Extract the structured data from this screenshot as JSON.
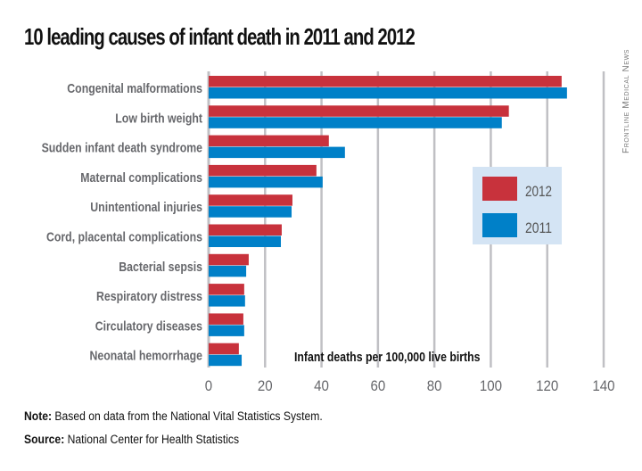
{
  "header": {
    "title": "10 leading causes of infant death in 2011 and 2012",
    "brand": "Frontline Medical News"
  },
  "colors": {
    "series_2012": "#c8323c",
    "series_2011": "#0080c8",
    "gridline": "#c0c0c4",
    "legend_bg": "#d4e4f4"
  },
  "chart_data": {
    "type": "bar",
    "orientation": "horizontal",
    "title": "10 leading causes of infant death in 2011 and 2012",
    "xlabel": "Infant deaths per 100,000 live births",
    "ylabel": "",
    "xlim": [
      0,
      140
    ],
    "xticks": [
      "0",
      "20",
      "40",
      "60",
      "80",
      "100",
      "120",
      "140"
    ],
    "grid": true,
    "legend_position": "right",
    "categories": [
      "Congenital malformations",
      "Low birth weight",
      "Sudden infant death syndrome",
      "Maternal complications",
      "Unintentional injuries",
      "Cord, placental complications",
      "Bacterial sepsis",
      "Respiratory distress",
      "Circulatory diseases",
      "Neonatal hemorrhage"
    ],
    "series": [
      {
        "name": "2012",
        "values": [
          125.1,
          106.4,
          42.6,
          38.2,
          29.7,
          25.9,
          14.2,
          12.6,
          12.3,
          10.7
        ]
      },
      {
        "name": "2011",
        "values": [
          127.0,
          103.9,
          48.3,
          40.4,
          29.4,
          25.6,
          13.3,
          12.9,
          12.6,
          11.7
        ]
      }
    ]
  },
  "footer": {
    "note_label": "Note:",
    "note_text": " Based on data from the National Vital Statistics System.",
    "source_label": "Source:",
    "source_text": " National Center for Health Statistics"
  }
}
